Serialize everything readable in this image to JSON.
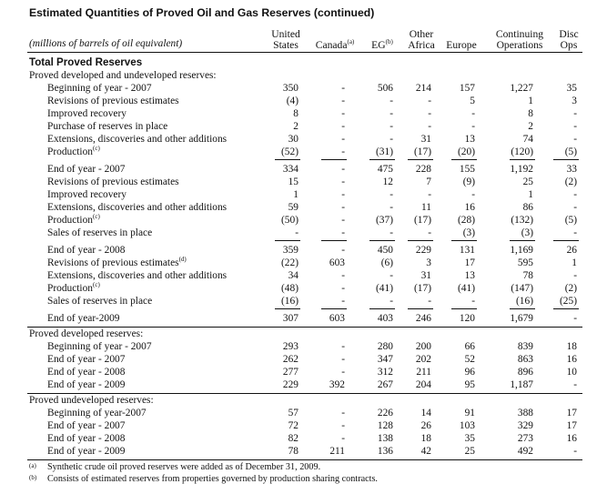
{
  "title": "Estimated Quantities of Proved Oil and Gas Reserves (continued)",
  "units_label": "(millions of barrels of oil equivalent)",
  "columns": [
    {
      "top": "United",
      "bottom": "States"
    },
    {
      "top": "",
      "bottom": "Canada",
      "sup": "(a)"
    },
    {
      "top": "",
      "bottom": "EG",
      "sup": "(b)"
    },
    {
      "top": "Other",
      "bottom": "Africa"
    },
    {
      "top": "",
      "bottom": "Europe"
    },
    {
      "top": "Continuing",
      "bottom": "Operations"
    },
    {
      "top": "Disc",
      "bottom": "Ops"
    }
  ],
  "rows": [
    {
      "label": "Total Proved Reserves",
      "kind": "bold"
    },
    {
      "label": "Proved developed and undeveloped reserves:",
      "kind": "section"
    },
    {
      "label": "Beginning of year - 2007",
      "values": [
        "350",
        "-",
        "506",
        "214",
        "157",
        "1,227",
        "35"
      ]
    },
    {
      "label": "Revisions of previous estimates",
      "values": [
        "(4)",
        "-",
        "-",
        "-",
        "5",
        "1",
        "3"
      ]
    },
    {
      "label": "Improved recovery",
      "values": [
        "8",
        "-",
        "-",
        "-",
        "-",
        "8",
        "-"
      ]
    },
    {
      "label": "Purchase of reserves in place",
      "values": [
        "2",
        "-",
        "-",
        "-",
        "-",
        "2",
        "-"
      ]
    },
    {
      "label": "Extensions, discoveries and other additions",
      "values": [
        "30",
        "-",
        "-",
        "31",
        "13",
        "74",
        "-"
      ]
    },
    {
      "label": "Production",
      "sup": "(c)",
      "values": [
        "(52)",
        "-",
        "(31)",
        "(17)",
        "(20)",
        "(120)",
        "(5)"
      ],
      "underline": true
    },
    {
      "label": "End of year - 2007",
      "values": [
        "334",
        "-",
        "475",
        "228",
        "155",
        "1,192",
        "33"
      ]
    },
    {
      "label": "Revisions of previous estimates",
      "values": [
        "15",
        "-",
        "12",
        "7",
        "(9)",
        "25",
        "(2)"
      ]
    },
    {
      "label": "Improved recovery",
      "values": [
        "1",
        "-",
        "-",
        "-",
        "-",
        "1",
        "-"
      ]
    },
    {
      "label": "Extensions, discoveries and other additions",
      "values": [
        "59",
        "-",
        "-",
        "11",
        "16",
        "86",
        "-"
      ]
    },
    {
      "label": "Production",
      "sup": "(c)",
      "values": [
        "(50)",
        "-",
        "(37)",
        "(17)",
        "(28)",
        "(132)",
        "(5)"
      ]
    },
    {
      "label": "Sales of reserves in place",
      "values": [
        "-",
        "-",
        "-",
        "-",
        "(3)",
        "(3)",
        "-"
      ],
      "underline": true
    },
    {
      "label": "End of year - 2008",
      "values": [
        "359",
        "-",
        "450",
        "229",
        "131",
        "1,169",
        "26"
      ]
    },
    {
      "label": "Revisions of previous estimates",
      "sup": "(d)",
      "values": [
        "(22)",
        "603",
        "(6)",
        "3",
        "17",
        "595",
        "1"
      ]
    },
    {
      "label": "Extensions, discoveries and other additions",
      "values": [
        "34",
        "-",
        "-",
        "31",
        "13",
        "78",
        "-"
      ]
    },
    {
      "label": "Production",
      "sup": "(c)",
      "values": [
        "(48)",
        "-",
        "(41)",
        "(17)",
        "(41)",
        "(147)",
        "(2)"
      ]
    },
    {
      "label": "Sales of reserves in place",
      "values": [
        "(16)",
        "-",
        "-",
        "-",
        "-",
        "(16)",
        "(25)"
      ],
      "underline": true
    },
    {
      "label": "End of year-2009",
      "values": [
        "307",
        "603",
        "403",
        "246",
        "120",
        "1,679",
        "-"
      ],
      "rule_after": true
    },
    {
      "label": "Proved developed reserves:",
      "kind": "section"
    },
    {
      "label": "Beginning of year - 2007",
      "values": [
        "293",
        "-",
        "280",
        "200",
        "66",
        "839",
        "18"
      ]
    },
    {
      "label": "End of year - 2007",
      "values": [
        "262",
        "-",
        "347",
        "202",
        "52",
        "863",
        "16"
      ]
    },
    {
      "label": "End of year - 2008",
      "values": [
        "277",
        "-",
        "312",
        "211",
        "96",
        "896",
        "10"
      ]
    },
    {
      "label": "End of year - 2009",
      "values": [
        "229",
        "392",
        "267",
        "204",
        "95",
        "1,187",
        "-"
      ],
      "rule_after": true
    },
    {
      "label": "Proved undeveloped reserves:",
      "kind": "section"
    },
    {
      "label": "Beginning of year-2007",
      "values": [
        "57",
        "-",
        "226",
        "14",
        "91",
        "388",
        "17"
      ]
    },
    {
      "label": "End of year - 2007",
      "values": [
        "72",
        "-",
        "128",
        "26",
        "103",
        "329",
        "17"
      ]
    },
    {
      "label": "End of year - 2008",
      "values": [
        "82",
        "-",
        "138",
        "18",
        "35",
        "273",
        "16"
      ]
    },
    {
      "label": "End of year - 2009",
      "values": [
        "78",
        "211",
        "136",
        "42",
        "25",
        "492",
        "-"
      ],
      "rule_after": true
    }
  ],
  "footnotes": [
    {
      "mark": "(a)",
      "text": "Synthetic crude oil proved reserves were added as of December 31, 2009."
    },
    {
      "mark": "(b)",
      "text": "Consists of estimated reserves from properties governed by production sharing contracts."
    }
  ]
}
